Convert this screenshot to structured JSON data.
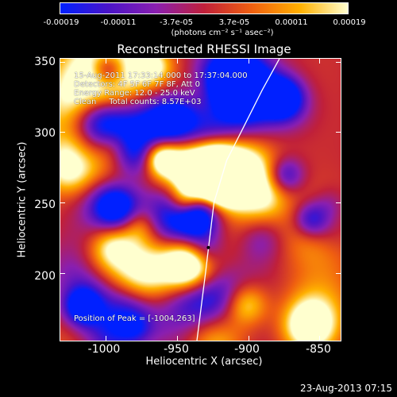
{
  "title": "Reconstructed RHESSI Image",
  "colorbar": {
    "tick_labels": [
      "-0.00019",
      "-0.00011",
      "-3.7e-05",
      "3.7e-05",
      "0.00011",
      "0.00019"
    ],
    "unit_label": "(photons cm⁻² s⁻¹ asec⁻²)",
    "colors": [
      "#0020ff",
      "#4a14c8",
      "#8a1fb0",
      "#c0203a",
      "#f06010",
      "#ffb000",
      "#ffffd0"
    ]
  },
  "info": {
    "time_range": "15-Aug-2011 17:33:14.000 to 17:37:04.000",
    "detectors": "Detectors: 4F 5F 6F 7F 8F, Att 0",
    "energy_range": "Energy Range: 12.0 - 25.0 keV",
    "clean": "Clean     Total counts: 8.57E+03",
    "peak": "Position of Peak = [-1004,263]"
  },
  "axes": {
    "xlabel": "Heliocentric X (arcsec)",
    "ylabel": "Heliocentric Y (arcsec)",
    "x_ticks": [
      "-1000",
      "-950",
      "-900",
      "-850"
    ],
    "y_ticks": [
      "350",
      "300",
      "250",
      "200"
    ],
    "xlim": [
      -1032,
      -835
    ],
    "ylim": [
      152,
      352
    ]
  },
  "timestamp": "23-Aug-2013 07:15",
  "chart_data": {
    "type": "heatmap",
    "title": "Reconstructed RHESSI Image",
    "xlabel": "Heliocentric X (arcsec)",
    "ylabel": "Heliocentric Y (arcsec)",
    "x_ticks": [
      -1000,
      -950,
      -900,
      -850
    ],
    "y_ticks": [
      200,
      250,
      300,
      350
    ],
    "xlim": [
      -1032,
      -835
    ],
    "ylim": [
      152,
      352
    ],
    "colorbar_range": [
      -0.00019,
      0.00019
    ],
    "peak_position": [
      -1004,
      263
    ],
    "total_counts": 8570,
    "energy_range_kev": [
      12.0,
      25.0
    ],
    "detectors": [
      "4F",
      "5F",
      "6F",
      "7F",
      "8F"
    ],
    "attenuator": 0,
    "time_range": [
      "15-Aug-2011 17:33:14.000",
      "17:37:04.000"
    ],
    "limb_curve_x": [
      -936,
      -930,
      -924,
      -915,
      -905,
      -890,
      -878
    ],
    "limb_curve_y": [
      152,
      200,
      250,
      280,
      300,
      330,
      352
    ]
  }
}
